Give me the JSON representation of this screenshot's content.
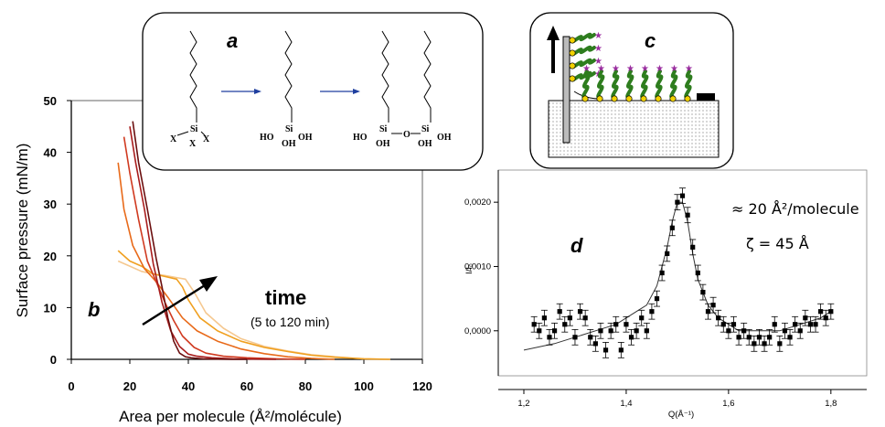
{
  "chart_data": [
    {
      "panel": "b",
      "type": "line",
      "xlabel": "Area per molecule (Å²/molécule)",
      "ylabel": "Surface pressure (mN/m)",
      "xlim": [
        0,
        120
      ],
      "ylim": [
        0,
        50
      ],
      "xticks": [
        0,
        20,
        40,
        60,
        80,
        100,
        120
      ],
      "yticks": [
        0,
        10,
        20,
        30,
        40,
        50
      ],
      "annotation_main": "time",
      "annotation_sub": "(5 to 120 min)",
      "series": [
        {
          "color": "#6b0f0f",
          "x": [
            21,
            23,
            26,
            29,
            31,
            33,
            35,
            37,
            39,
            41,
            45,
            50,
            55,
            60
          ],
          "y": [
            46,
            38,
            29,
            19.5,
            14,
            8,
            3.5,
            1.2,
            0.5,
            0.3,
            0.1,
            0.05,
            0,
            0
          ]
        },
        {
          "color": "#a81c1c",
          "x": [
            20,
            22,
            25,
            28,
            31,
            34,
            37,
            40,
            43,
            48,
            55,
            62,
            70
          ],
          "y": [
            45,
            38,
            29,
            18.5,
            11,
            5.5,
            2.5,
            1,
            0.6,
            0.3,
            0.1,
            0.05,
            0
          ]
        },
        {
          "color": "#d03a20",
          "x": [
            18,
            20,
            23,
            26,
            29,
            32,
            35,
            38,
            42,
            46,
            52,
            60,
            70,
            80
          ],
          "y": [
            43,
            36,
            27,
            19,
            15,
            11,
            7.5,
            4.5,
            2.3,
            1.2,
            0.6,
            0.3,
            0.1,
            0
          ]
        },
        {
          "color": "#e86a1a",
          "x": [
            16,
            18,
            21,
            25,
            29,
            33,
            38,
            43,
            50,
            58,
            66,
            74,
            82,
            90
          ],
          "y": [
            38,
            29,
            22,
            17.5,
            15,
            12,
            8,
            5.5,
            3.5,
            2,
            1.1,
            0.5,
            0.2,
            0
          ]
        },
        {
          "color": "#f0a020",
          "x": [
            16,
            20,
            24,
            28,
            32,
            36,
            38,
            40,
            44,
            50,
            58,
            66,
            74,
            82,
            90,
            100,
            109
          ],
          "y": [
            21,
            19,
            18,
            16.5,
            16,
            15.5,
            14,
            11.5,
            8,
            5.5,
            3.5,
            2.3,
            1.5,
            0.8,
            0.4,
            0.1,
            0
          ]
        },
        {
          "color": "#f5c890",
          "x": [
            16,
            20,
            24,
            28,
            32,
            36,
            39,
            42,
            46,
            52,
            58,
            66,
            74,
            82,
            92,
            100,
            109
          ],
          "y": [
            19,
            18,
            17,
            16.5,
            16.2,
            15.8,
            15.5,
            13,
            9,
            6,
            4,
            2.5,
            1.6,
            0.9,
            0.4,
            0.1,
            0
          ]
        }
      ]
    },
    {
      "panel": "d",
      "type": "scatter",
      "xlabel": "Q(Å⁻¹)",
      "ylabel": "I/I₀",
      "xlim": [
        1.15,
        1.87
      ],
      "ylim": [
        -0.0007,
        0.0025
      ],
      "xticks": [
        1.2,
        1.4,
        1.6,
        1.8
      ],
      "yticks": [
        0,
        0.001,
        0.002
      ],
      "xticklabels": [
        "1,2",
        "1,4",
        "1,6",
        "1,8"
      ],
      "yticklabels": [
        "0,0000",
        "0,0010",
        "0,0020"
      ],
      "annotation_area": "≈ 20 Å²/molecule",
      "annotation_zeta": "ζ = 45 Å",
      "points": {
        "x": [
          1.22,
          1.23,
          1.24,
          1.25,
          1.26,
          1.27,
          1.28,
          1.29,
          1.3,
          1.31,
          1.32,
          1.33,
          1.34,
          1.35,
          1.36,
          1.37,
          1.38,
          1.39,
          1.4,
          1.41,
          1.42,
          1.43,
          1.44,
          1.45,
          1.46,
          1.47,
          1.48,
          1.49,
          1.5,
          1.51,
          1.52,
          1.53,
          1.54,
          1.55,
          1.56,
          1.57,
          1.58,
          1.59,
          1.6,
          1.61,
          1.62,
          1.63,
          1.64,
          1.65,
          1.66,
          1.67,
          1.68,
          1.69,
          1.7,
          1.71,
          1.72,
          1.73,
          1.74,
          1.75,
          1.76,
          1.77,
          1.78,
          1.79,
          1.8
        ],
        "y": [
          0.0001,
          0.0,
          0.0002,
          -0.0001,
          0.0,
          0.0003,
          0.0001,
          0.0002,
          -0.0001,
          0.0003,
          0.0002,
          -0.0001,
          -0.0002,
          0.0,
          -0.0003,
          0.0,
          0.0001,
          -0.0003,
          0.0001,
          -0.0001,
          0.0,
          0.0002,
          0.0,
          0.0003,
          0.0005,
          0.0009,
          0.0012,
          0.0016,
          0.002,
          0.0021,
          0.0018,
          0.0013,
          0.0009,
          0.0006,
          0.0003,
          0.0004,
          0.0002,
          0.0001,
          0.0,
          0.0001,
          -0.0001,
          0.0,
          -0.0001,
          -0.0002,
          -0.0001,
          -0.0002,
          -0.0001,
          0.0001,
          -0.0002,
          0.0,
          -0.0001,
          0.0001,
          0.0,
          0.0002,
          0.0001,
          0.0001,
          0.0003,
          0.0002,
          0.0003
        ]
      },
      "fit": {
        "x": [
          1.2,
          1.26,
          1.3,
          1.34,
          1.38,
          1.42,
          1.44,
          1.46,
          1.48,
          1.49,
          1.5,
          1.51,
          1.52,
          1.53,
          1.54,
          1.56,
          1.58,
          1.62,
          1.66,
          1.7,
          1.74,
          1.78,
          1.8
        ],
        "y": [
          -0.0003,
          -0.0002,
          -0.0001,
          0.0,
          0.0001,
          0.0003,
          0.0004,
          0.0007,
          0.0013,
          0.0017,
          0.002,
          0.002,
          0.0017,
          0.0012,
          0.0008,
          0.0004,
          0.0002,
          0.0,
          0.0,
          0.0,
          0.0001,
          0.0002,
          0.0003
        ]
      }
    }
  ],
  "labels": {
    "panel_a": "a",
    "panel_b": "b",
    "panel_c": "c",
    "panel_d": "d"
  },
  "reaction": {
    "molecule1": {
      "si": "Si",
      "x_left": "X",
      "x_right": "X",
      "x_bottom": "X"
    },
    "molecule2": {
      "ho": "HO",
      "si": "Si",
      "oh_right": "OH",
      "oh_bottom": "OH"
    },
    "molecule3": {
      "ho": "HO",
      "si1": "Si",
      "o": "O",
      "si2": "Si",
      "oh_right": "OH",
      "oh_b1": "OH",
      "oh_b2": "OH"
    }
  }
}
